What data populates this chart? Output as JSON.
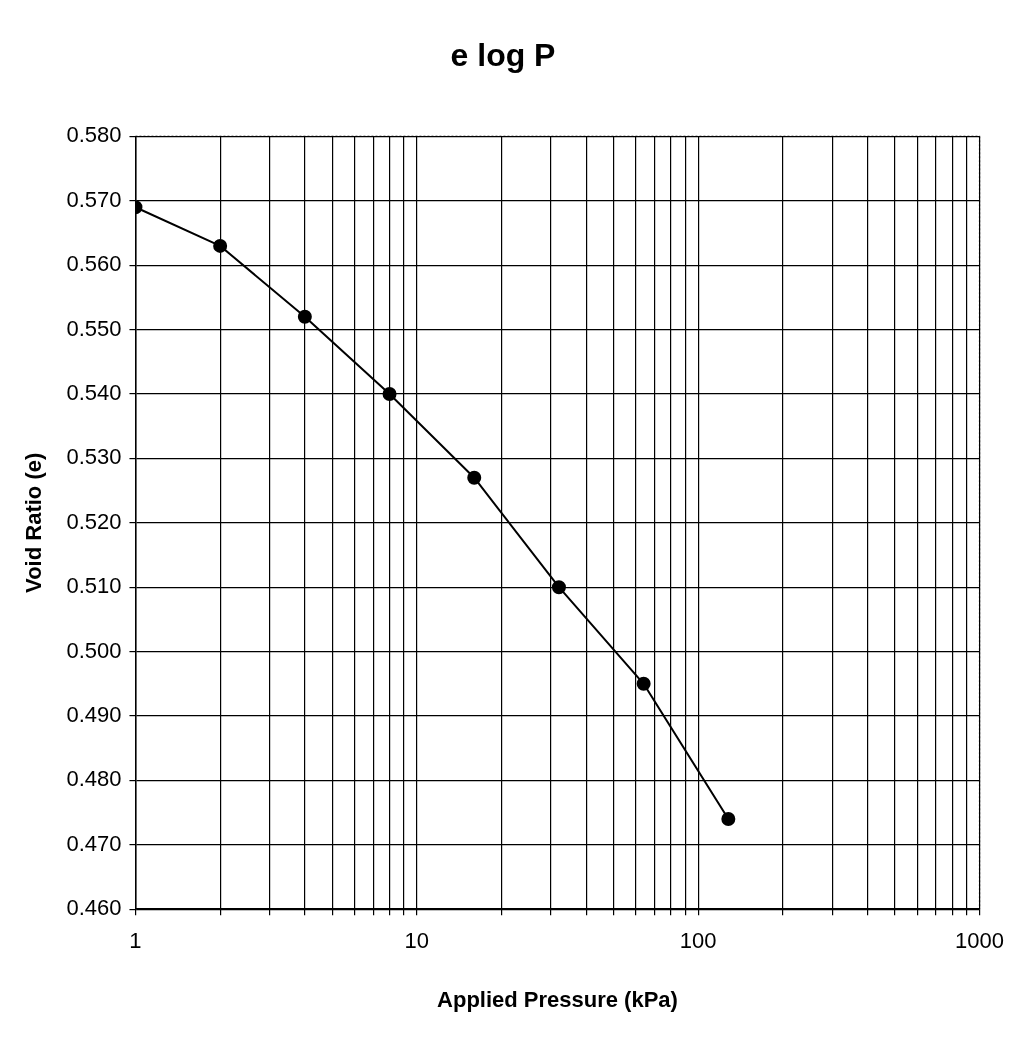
{
  "chart_data": {
    "type": "line",
    "title": "e log P",
    "xlabel": "Applied Pressure (kPa)",
    "ylabel": "Void Ratio (e)",
    "x": [
      1,
      2,
      4,
      8,
      16,
      32,
      64,
      128
    ],
    "series": [
      {
        "color": "#000000",
        "values": [
          0.569,
          0.563,
          0.552,
          0.54,
          0.527,
          0.51,
          0.495,
          0.474
        ]
      }
    ],
    "xlim": [
      1,
      1000
    ],
    "xticks": [
      1,
      10,
      100,
      1000
    ],
    "ylim": [
      0.46,
      0.58
    ],
    "yticks": [
      {
        "value": 0.46,
        "label": "0.460"
      },
      {
        "value": 0.47,
        "label": "0.470"
      },
      {
        "value": 0.48,
        "label": "0.480"
      },
      {
        "value": 0.49,
        "label": "0.490"
      },
      {
        "value": 0.5,
        "label": "0.500"
      },
      {
        "value": 0.51,
        "label": "0.510"
      },
      {
        "value": 0.52,
        "label": "0.520"
      },
      {
        "value": 0.53,
        "label": "0.530"
      },
      {
        "value": 0.54,
        "label": "0.540"
      },
      {
        "value": 0.55,
        "label": "0.550"
      },
      {
        "value": 0.56,
        "label": "0.560"
      },
      {
        "value": 0.57,
        "label": "0.570"
      },
      {
        "value": 0.58,
        "label": "0.580"
      }
    ],
    "log": "x",
    "grid": true,
    "marker": "circle",
    "line_style": "solid"
  }
}
